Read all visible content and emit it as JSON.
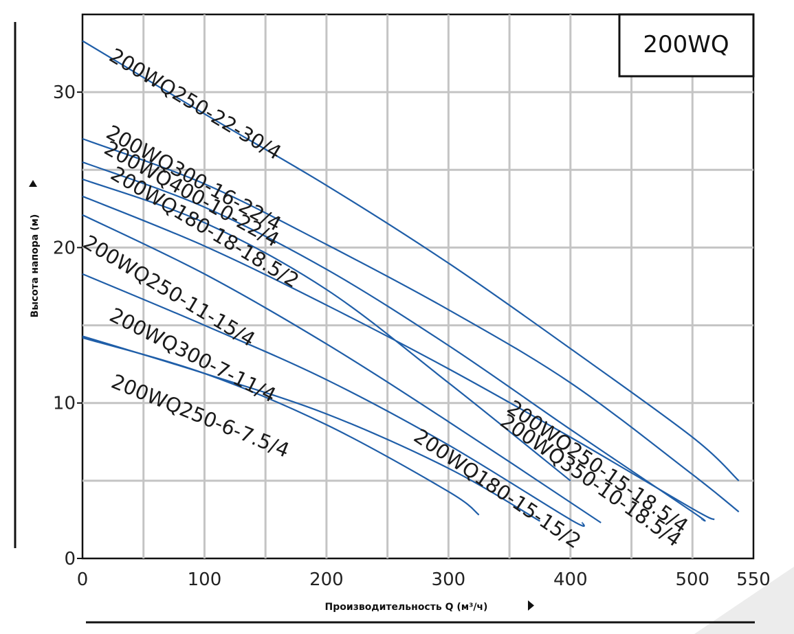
{
  "chart_data": {
    "type": "line",
    "title": "200WQ",
    "xlabel": "Производительность Q (м³/ч)",
    "ylabel": "Высота напора (м)",
    "xlim": [
      0,
      550
    ],
    "ylim": [
      0,
      35
    ],
    "x_ticks": [
      0,
      100,
      200,
      300,
      400,
      500,
      550
    ],
    "y_ticks": [
      0,
      10,
      20,
      30
    ],
    "grid": true,
    "series": [
      {
        "name": "200WQ250-22-30/4",
        "x": [
          0,
          100,
          200,
          300,
          400,
          500,
          538
        ],
        "y": [
          33.3,
          28.6,
          24.0,
          19.0,
          13.5,
          7.8,
          5.0
        ]
      },
      {
        "name": "200WQ300-16-22/4",
        "x": [
          0,
          100,
          200,
          300,
          400,
          500,
          538
        ],
        "y": [
          27.0,
          24.1,
          20.2,
          16.0,
          11.3,
          5.4,
          3.0
        ]
      },
      {
        "name": "200WQ400-10-22/4",
        "x": [
          0,
          100,
          200,
          300,
          400,
          500,
          508
        ],
        "y": [
          25.5,
          22.6,
          18.6,
          13.7,
          8.3,
          3.0,
          2.5
        ]
      },
      {
        "name": "200WQ180-18-18.5/2",
        "x": [
          0,
          100,
          200,
          300,
          400
        ],
        "y": [
          24.4,
          21.6,
          17.3,
          11.3,
          5.0
        ]
      },
      {
        "name": "200WQ250-15-18.5/4",
        "x": [
          0,
          100,
          200,
          300,
          400,
          500,
          518
        ],
        "y": [
          23.3,
          20.1,
          16.3,
          12.2,
          7.8,
          3.2,
          2.5
        ]
      },
      {
        "name": "200WQ250-11-15/4",
        "x": [
          0,
          100,
          200,
          300,
          425
        ],
        "y": [
          22.1,
          18.3,
          13.8,
          8.8,
          2.3
        ]
      },
      {
        "name": "200WQ180-15-15/2",
        "x": [
          0,
          100,
          200,
          300,
          400,
          410
        ],
        "y": [
          18.3,
          15.0,
          11.5,
          7.3,
          2.5,
          2.3
        ]
      },
      {
        "name": "200WQ300-7-11/4",
        "x": [
          0,
          100,
          200,
          300,
          375
        ],
        "y": [
          14.3,
          11.9,
          9.3,
          5.8,
          2.4
        ]
      },
      {
        "name": "200WQ250-6-7.5/4",
        "x": [
          0,
          100,
          200,
          300,
          325
        ],
        "y": [
          14.2,
          11.9,
          8.6,
          4.3,
          2.8
        ]
      }
    ]
  },
  "page_texts": {
    "badge": "200WQ"
  }
}
